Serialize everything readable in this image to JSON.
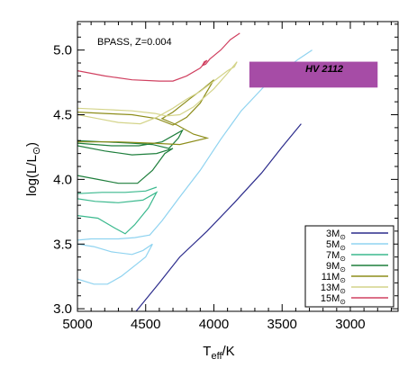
{
  "chart_data": {
    "type": "line",
    "title": "",
    "annotation": "BPASS, Z=0.004",
    "xlabel_main": "T",
    "xlabel_sub": "eff",
    "xlabel_tail": "/K",
    "ylabel_pre": "log(L/L",
    "ylabel_sun": "⊙",
    "ylabel_post": ")",
    "xlim": [
      5000,
      2650
    ],
    "ylim": [
      2.98,
      5.22
    ],
    "xticks": [
      5000,
      4500,
      4000,
      3500,
      3000
    ],
    "yticks": [
      3.0,
      3.5,
      4.0,
      4.5,
      5.0
    ],
    "xtick_labels": [
      "5000",
      "4500",
      "4000",
      "3500",
      "3000"
    ],
    "ytick_labels": [
      "3.0",
      "3.5",
      "4.0",
      "4.5",
      "5.0"
    ],
    "legend_position": "bottom-right",
    "observed_box": {
      "label": "HV 2112",
      "teff_range": [
        3740,
        2800
      ],
      "logL_range": [
        4.71,
        4.91
      ],
      "color": "#a64ca6"
    },
    "series": [
      {
        "name": "3M",
        "color": "#2c2c8c",
        "points": [
          [
            4570,
            2.98
          ],
          [
            4400,
            3.2
          ],
          [
            4250,
            3.4
          ],
          [
            4050,
            3.6
          ],
          [
            3850,
            3.82
          ],
          [
            3650,
            4.05
          ],
          [
            3500,
            4.25
          ],
          [
            3360,
            4.43
          ]
        ]
      },
      {
        "name": "5M",
        "color": "#8fd3f0",
        "points": [
          [
            5000,
            3.23
          ],
          [
            4880,
            3.19
          ],
          [
            4780,
            3.19
          ],
          [
            4680,
            3.25
          ],
          [
            4560,
            3.35
          ],
          [
            4500,
            3.4
          ],
          [
            4450,
            3.5
          ],
          [
            4520,
            3.45
          ],
          [
            4600,
            3.42
          ],
          [
            4750,
            3.44
          ],
          [
            4880,
            3.48
          ],
          [
            5000,
            3.5
          ],
          [
            5000,
            3.53
          ],
          [
            4900,
            3.54
          ],
          [
            4700,
            3.54
          ],
          [
            4580,
            3.55
          ],
          [
            4470,
            3.57
          ],
          [
            4380,
            3.68
          ],
          [
            4260,
            3.85
          ],
          [
            4100,
            4.07
          ],
          [
            3950,
            4.31
          ],
          [
            3800,
            4.53
          ],
          [
            3630,
            4.72
          ],
          [
            3480,
            4.85
          ],
          [
            3380,
            4.93
          ],
          [
            3280,
            5.0
          ]
        ]
      },
      {
        "name": "7M",
        "color": "#3bb98e",
        "points": [
          [
            5000,
            3.72
          ],
          [
            4850,
            3.7
          ],
          [
            4720,
            3.62
          ],
          [
            4650,
            3.58
          ],
          [
            4580,
            3.65
          ],
          [
            4480,
            3.78
          ],
          [
            4420,
            3.9
          ],
          [
            4520,
            3.84
          ],
          [
            4700,
            3.82
          ],
          [
            4870,
            3.83
          ],
          [
            5000,
            3.85
          ],
          [
            5000,
            3.89
          ],
          [
            4820,
            3.9
          ],
          [
            4650,
            3.9
          ],
          [
            4500,
            3.91
          ],
          [
            4420,
            3.94
          ]
        ]
      },
      {
        "name": "9M",
        "color": "#1e7e3c",
        "points": [
          [
            5000,
            4.03
          ],
          [
            4850,
            4.0
          ],
          [
            4700,
            3.97
          ],
          [
            4560,
            3.97
          ],
          [
            4450,
            4.07
          ],
          [
            4360,
            4.2
          ],
          [
            4300,
            4.24
          ],
          [
            4420,
            4.2
          ],
          [
            4600,
            4.19
          ],
          [
            4800,
            4.22
          ],
          [
            5000,
            4.26
          ],
          [
            5000,
            4.3
          ],
          [
            4800,
            4.29
          ],
          [
            4600,
            4.28
          ],
          [
            4450,
            4.27
          ],
          [
            4330,
            4.24
          ],
          [
            4260,
            4.32
          ],
          [
            4230,
            4.38
          ],
          [
            4380,
            4.29
          ],
          [
            4550,
            4.26
          ],
          [
            4750,
            4.26
          ],
          [
            5000,
            4.28
          ]
        ]
      },
      {
        "name": "11M",
        "color": "#8d8d1a",
        "points": [
          [
            5000,
            4.52
          ],
          [
            4800,
            4.51
          ],
          [
            4600,
            4.5
          ],
          [
            4420,
            4.47
          ],
          [
            4300,
            4.42
          ],
          [
            4200,
            4.48
          ],
          [
            4100,
            4.59
          ],
          [
            4050,
            4.68
          ],
          [
            4000,
            4.77
          ],
          [
            4080,
            4.7
          ],
          [
            4180,
            4.62
          ],
          [
            4300,
            4.52
          ],
          [
            4380,
            4.47
          ],
          [
            4270,
            4.42
          ],
          [
            4150,
            4.35
          ],
          [
            4050,
            4.32
          ],
          [
            4250,
            4.27
          ],
          [
            4450,
            4.28
          ],
          [
            4700,
            4.29
          ],
          [
            5000,
            4.29
          ]
        ]
      },
      {
        "name": "13M",
        "color": "#d4d48a",
        "points": [
          [
            5000,
            4.55
          ],
          [
            4800,
            4.54
          ],
          [
            4600,
            4.53
          ],
          [
            4430,
            4.51
          ],
          [
            4350,
            4.49
          ],
          [
            4250,
            4.5
          ],
          [
            4150,
            4.56
          ],
          [
            4000,
            4.7
          ],
          [
            3900,
            4.82
          ],
          [
            3830,
            4.91
          ],
          [
            3850,
            4.87
          ],
          [
            3900,
            4.84
          ],
          [
            4000,
            4.76
          ],
          [
            4100,
            4.68
          ],
          [
            4200,
            4.62
          ],
          [
            4300,
            4.55
          ],
          [
            4420,
            4.48
          ],
          [
            4540,
            4.43
          ],
          [
            4700,
            4.44
          ],
          [
            4850,
            4.47
          ],
          [
            5000,
            4.5
          ]
        ]
      },
      {
        "name": "15M",
        "color": "#d04060",
        "points": [
          [
            5000,
            4.84
          ],
          [
            4800,
            4.8
          ],
          [
            4600,
            4.77
          ],
          [
            4400,
            4.76
          ],
          [
            4300,
            4.76
          ],
          [
            4200,
            4.8
          ],
          [
            4100,
            4.86
          ],
          [
            4050,
            4.92
          ],
          [
            4070,
            4.91
          ],
          [
            4085,
            4.88
          ],
          [
            4060,
            4.89
          ],
          [
            4030,
            4.93
          ],
          [
            3950,
            5.0
          ],
          [
            3880,
            5.08
          ],
          [
            3810,
            5.13
          ]
        ]
      }
    ]
  }
}
